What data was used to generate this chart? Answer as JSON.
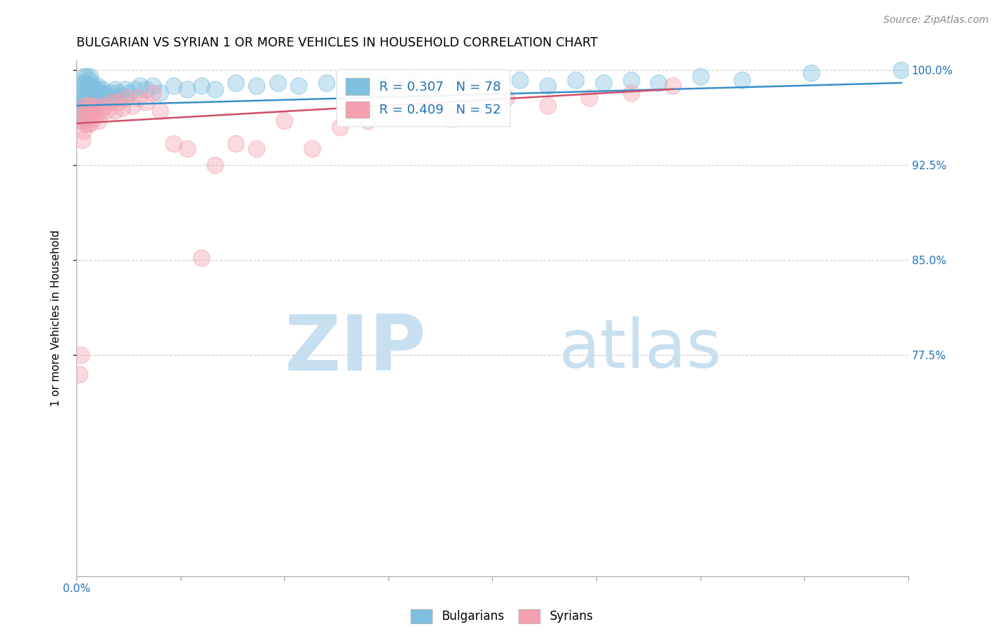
{
  "title": "BULGARIAN VS SYRIAN 1 OR MORE VEHICLES IN HOUSEHOLD CORRELATION CHART",
  "source": "Source: ZipAtlas.com",
  "ylabel": "1 or more Vehicles in Household",
  "xlim": [
    0.0,
    0.6
  ],
  "ylim": [
    0.6,
    1.008
  ],
  "xtick_positions": [
    0.0,
    0.075,
    0.15,
    0.225,
    0.3,
    0.375,
    0.45,
    0.525,
    0.6
  ],
  "xticklabels_show": {
    "0.0": "0.0%"
  },
  "ytick_positions": [
    1.0,
    0.925,
    0.85,
    0.775
  ],
  "ytick_labels": [
    "100.0%",
    "92.5%",
    "85.0%",
    "77.5%"
  ],
  "R_bulgarian": 0.307,
  "N_bulgarian": 78,
  "R_syrian": 0.409,
  "N_syrian": 52,
  "bulgarian_color": "#7fbfdf",
  "syrian_color": "#f4a0b0",
  "trendline_bulgarian_color": "#3a90c8",
  "trendline_syrian_color": "#d0506a",
  "bulgarian_x": [
    0.002,
    0.003,
    0.003,
    0.004,
    0.004,
    0.004,
    0.005,
    0.005,
    0.005,
    0.005,
    0.006,
    0.006,
    0.006,
    0.007,
    0.007,
    0.007,
    0.008,
    0.008,
    0.008,
    0.009,
    0.009,
    0.009,
    0.01,
    0.01,
    0.01,
    0.011,
    0.011,
    0.012,
    0.012,
    0.013,
    0.013,
    0.014,
    0.015,
    0.015,
    0.016,
    0.017,
    0.018,
    0.019,
    0.02,
    0.022,
    0.023,
    0.025,
    0.027,
    0.028,
    0.03,
    0.032,
    0.035,
    0.038,
    0.042,
    0.046,
    0.05,
    0.055,
    0.06,
    0.07,
    0.08,
    0.09,
    0.1,
    0.115,
    0.13,
    0.145,
    0.16,
    0.18,
    0.2,
    0.22,
    0.24,
    0.26,
    0.28,
    0.3,
    0.32,
    0.34,
    0.36,
    0.38,
    0.4,
    0.42,
    0.45,
    0.48,
    0.53,
    0.595
  ],
  "bulgarian_y": [
    0.97,
    0.96,
    0.975,
    0.98,
    0.965,
    0.99,
    0.975,
    0.985,
    0.995,
    0.968,
    0.98,
    0.97,
    0.99,
    0.985,
    0.975,
    0.995,
    0.978,
    0.988,
    0.968,
    0.982,
    0.972,
    0.992,
    0.985,
    0.975,
    0.995,
    0.98,
    0.97,
    0.988,
    0.978,
    0.985,
    0.975,
    0.982,
    0.988,
    0.978,
    0.985,
    0.982,
    0.978,
    0.985,
    0.982,
    0.98,
    0.978,
    0.982,
    0.978,
    0.985,
    0.982,
    0.98,
    0.985,
    0.982,
    0.985,
    0.988,
    0.985,
    0.988,
    0.982,
    0.988,
    0.985,
    0.988,
    0.985,
    0.99,
    0.988,
    0.99,
    0.988,
    0.99,
    0.985,
    0.99,
    0.992,
    0.988,
    0.992,
    0.99,
    0.992,
    0.988,
    0.992,
    0.99,
    0.992,
    0.99,
    0.995,
    0.992,
    0.998,
    1.0
  ],
  "syrian_x": [
    0.002,
    0.003,
    0.004,
    0.004,
    0.005,
    0.005,
    0.006,
    0.006,
    0.007,
    0.008,
    0.008,
    0.009,
    0.01,
    0.01,
    0.011,
    0.012,
    0.013,
    0.014,
    0.015,
    0.016,
    0.018,
    0.02,
    0.022,
    0.025,
    0.028,
    0.03,
    0.033,
    0.036,
    0.04,
    0.045,
    0.05,
    0.055,
    0.06,
    0.07,
    0.08,
    0.09,
    0.1,
    0.115,
    0.13,
    0.15,
    0.17,
    0.19,
    0.21,
    0.23,
    0.25,
    0.27,
    0.29,
    0.31,
    0.34,
    0.37,
    0.4,
    0.43
  ],
  "syrian_y": [
    0.76,
    0.775,
    0.96,
    0.945,
    0.968,
    0.952,
    0.972,
    0.958,
    0.965,
    0.972,
    0.958,
    0.965,
    0.972,
    0.958,
    0.968,
    0.962,
    0.968,
    0.972,
    0.965,
    0.96,
    0.968,
    0.972,
    0.968,
    0.975,
    0.968,
    0.975,
    0.97,
    0.978,
    0.972,
    0.978,
    0.975,
    0.982,
    0.968,
    0.942,
    0.938,
    0.852,
    0.925,
    0.942,
    0.938,
    0.96,
    0.938,
    0.955,
    0.96,
    0.965,
    0.975,
    0.962,
    0.97,
    0.978,
    0.972,
    0.978,
    0.982,
    0.988
  ],
  "watermark_zip": "ZIP",
  "watermark_atlas": "atlas",
  "watermark_color_zip": "#c8dff0",
  "watermark_color_atlas": "#c8dff0",
  "watermark_fontsize": 68
}
